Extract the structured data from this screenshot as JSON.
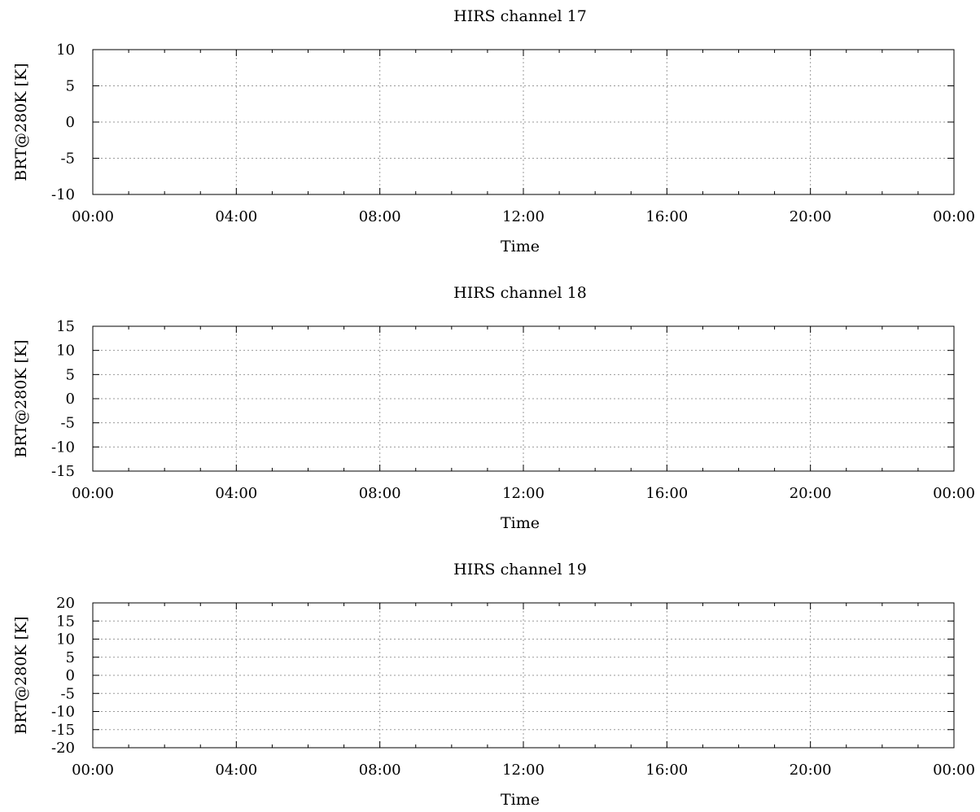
{
  "chart_data": [
    {
      "type": "line",
      "title": "HIRS channel 17",
      "xlabel": "Time",
      "ylabel": "BRT@280K [K]",
      "xlim": [
        "00:00",
        "00:00"
      ],
      "x_ticks": [
        "00:00",
        "04:00",
        "08:00",
        "12:00",
        "16:00",
        "20:00",
        "00:00"
      ],
      "ylim": [
        -10,
        10
      ],
      "y_ticks": [
        -10,
        -5,
        0,
        5,
        10
      ],
      "grid": true,
      "series": []
    },
    {
      "type": "line",
      "title": "HIRS channel 18",
      "xlabel": "Time",
      "ylabel": "BRT@280K [K]",
      "xlim": [
        "00:00",
        "00:00"
      ],
      "x_ticks": [
        "00:00",
        "04:00",
        "08:00",
        "12:00",
        "16:00",
        "20:00",
        "00:00"
      ],
      "ylim": [
        -15,
        15
      ],
      "y_ticks": [
        -15,
        -10,
        -5,
        0,
        5,
        10,
        15
      ],
      "grid": true,
      "series": []
    },
    {
      "type": "line",
      "title": "HIRS channel 19",
      "xlabel": "Time",
      "ylabel": "BRT@280K [K]",
      "xlim": [
        "00:00",
        "00:00"
      ],
      "x_ticks": [
        "00:00",
        "04:00",
        "08:00",
        "12:00",
        "16:00",
        "20:00",
        "00:00"
      ],
      "ylim": [
        -20,
        20
      ],
      "y_ticks": [
        -20,
        -15,
        -10,
        -5,
        0,
        5,
        10,
        15,
        20
      ],
      "grid": true,
      "series": []
    }
  ]
}
